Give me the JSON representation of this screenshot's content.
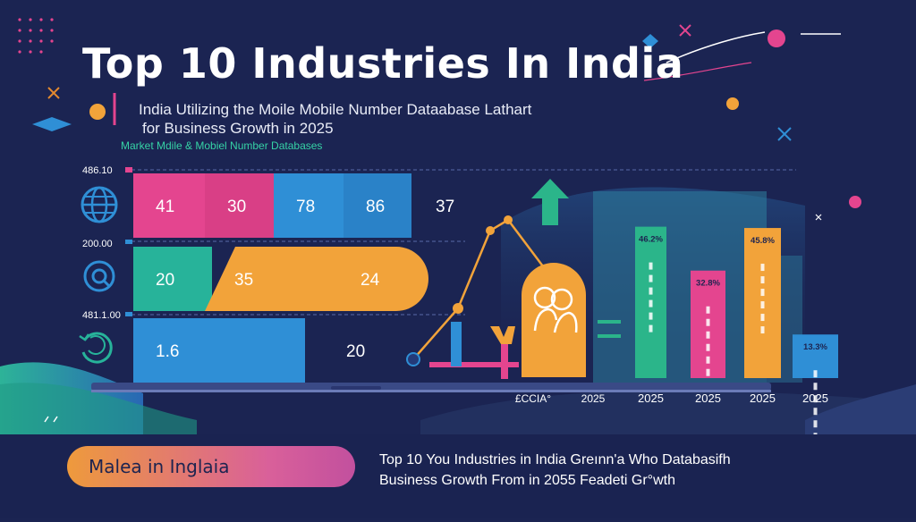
{
  "title": "Top 10 Industries In India",
  "subtitle_line1": "India Utilizing the Moile Mobile Number Dataabase Lathart",
  "subtitle_line2": "for Business Growth in 2025",
  "tagline": "Market Mdile & Mobiel Number Databases",
  "footer": {
    "pill_label": "Malea in Inglaia",
    "text_line1": "Top 10 You Industries in India Greınn'a Who Databasifh",
    "text_line2": "Business Growth From in 2055 Feadeti Gr°wth"
  },
  "colors": {
    "background": "#1b2452",
    "pink": "#e4458f",
    "blue": "#2f8fd6",
    "teal": "#27b39a",
    "orange": "#f2a33a",
    "green": "#2bb58a",
    "slate": "#3a5fae"
  },
  "icons": [
    "globe-icon",
    "search-icon",
    "refresh-icon",
    "arrow-up-icon",
    "people-icon"
  ],
  "chart_data": [
    {
      "type": "bar",
      "orientation": "horizontal-stacked",
      "y_tick_labels": [
        "486.10",
        "200.00",
        "481.1.00"
      ],
      "rows": [
        {
          "segments": [
            {
              "value": 41,
              "label": "41",
              "color": "pink"
            },
            {
              "value": 30,
              "label": "30",
              "color": "pink"
            },
            {
              "value": 78,
              "label": "78",
              "color": "blue"
            },
            {
              "value": 86,
              "label": "86",
              "color": "blue"
            }
          ],
          "trailing_label": "37"
        },
        {
          "segments": [
            {
              "value": 20,
              "label": "20",
              "color": "teal"
            },
            {
              "value": 35,
              "label": "35",
              "color": "orange"
            },
            {
              "value": 24,
              "label": "24",
              "color": "orange"
            }
          ]
        },
        {
          "segments": [
            {
              "value": 1.6,
              "label": "1.6",
              "color": "blue"
            }
          ],
          "trailing_label": "20"
        }
      ]
    },
    {
      "type": "bar",
      "orientation": "vertical",
      "ylim": [
        0,
        60
      ],
      "categories": [
        "2025",
        "2025",
        "2025",
        "2025"
      ],
      "values": [
        46.2,
        32.8,
        45.8,
        13.3
      ],
      "value_labels": [
        "46.2%",
        "32.8%",
        "45.8%",
        "13.3%"
      ],
      "colors": [
        "green",
        "pink",
        "orange",
        "blue"
      ],
      "extra_x_labels": [
        "£CCIA°",
        "2025"
      ]
    }
  ]
}
